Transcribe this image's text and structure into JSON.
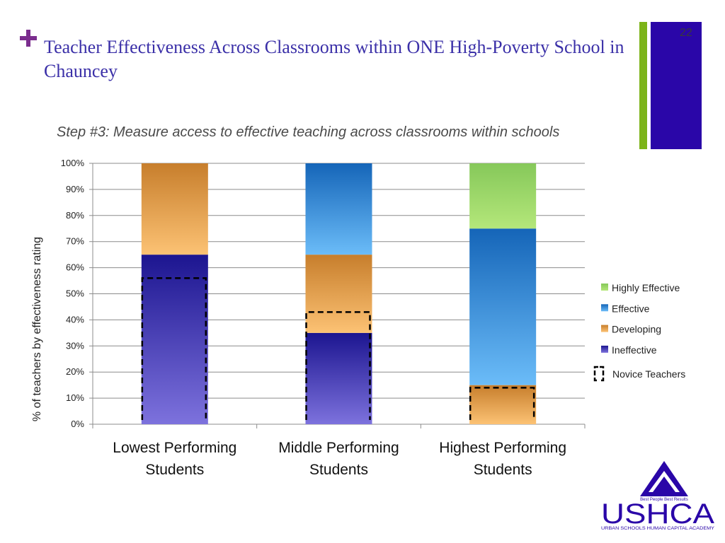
{
  "slide": {
    "title": "Teacher Effectiveness Across Classrooms within ONE High-Poverty School in Chauncey",
    "subtitle": "Step #3: Measure access to effective teaching across classrooms within schools",
    "slide_number": "22"
  },
  "logo": {
    "name": "USHCA",
    "tagline": "Best People Best Results",
    "full_name": "URBAN SCHOOLS HUMAN CAPITAL ACADEMY"
  },
  "colors": {
    "accent_green": "#7cb418",
    "accent_blue": "#2a06a8",
    "title": "#3b30a8"
  },
  "chart_data": {
    "type": "bar",
    "stacked": true,
    "categories": [
      "Lowest Performing Students",
      "Middle Performing Students",
      "Highest Performing Students"
    ],
    "ylabel": "% of teachers by effectiveness rating",
    "ylim": [
      0,
      100
    ],
    "yticks": [
      "0%",
      "10%",
      "20%",
      "30%",
      "40%",
      "50%",
      "60%",
      "70%",
      "80%",
      "90%",
      "100%"
    ],
    "grid": true,
    "legend_position": "right",
    "series": [
      {
        "name": "Ineffective",
        "values": [
          65,
          35,
          0
        ],
        "colors": [
          "#7d72dd",
          "#1c1590"
        ]
      },
      {
        "name": "Developing",
        "values": [
          35,
          30,
          15
        ],
        "colors": [
          "#fcc274",
          "#c77e2c"
        ]
      },
      {
        "name": "Effective",
        "values": [
          0,
          35,
          60
        ],
        "colors": [
          "#6bbcf8",
          "#1565b8"
        ]
      },
      {
        "name": "Highly Effective",
        "values": [
          0,
          0,
          25
        ],
        "colors": [
          "#b4e77a",
          "#86c85a"
        ]
      }
    ],
    "novice_teachers": {
      "name": "Novice Teachers",
      "values": [
        56,
        43,
        14
      ]
    }
  }
}
